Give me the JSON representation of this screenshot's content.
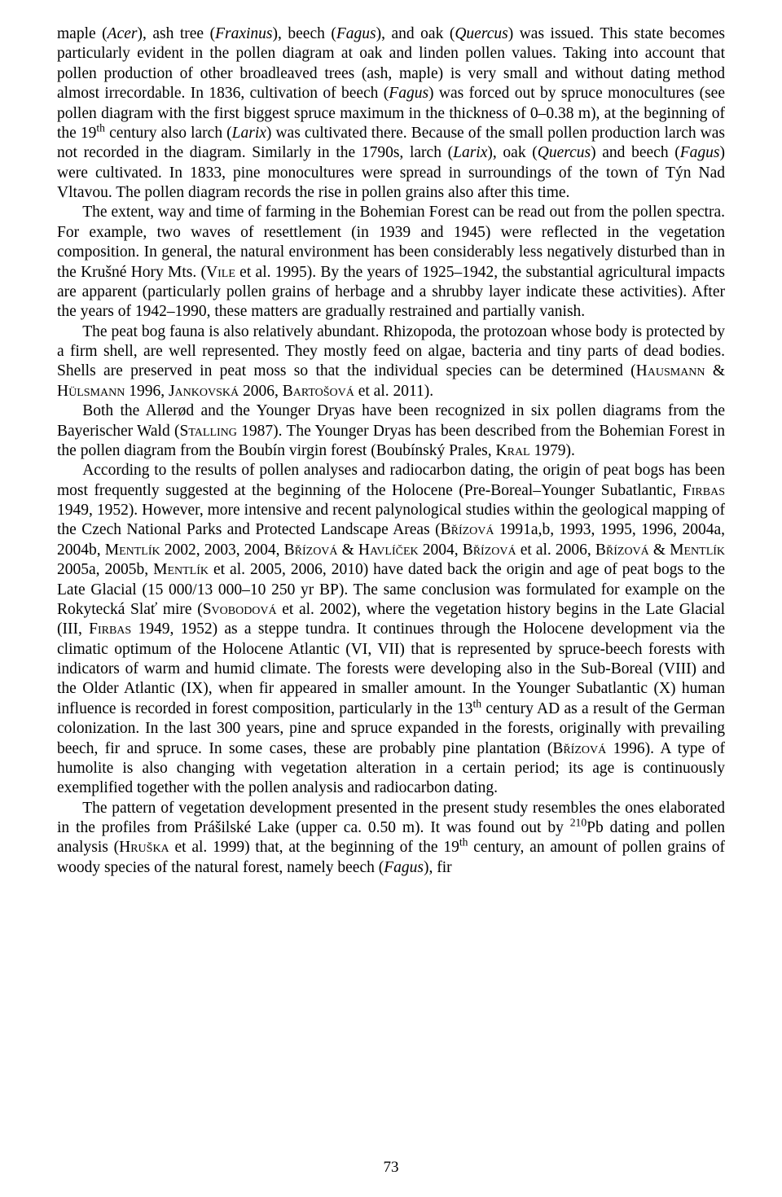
{
  "page": {
    "number": "73",
    "paragraphs": {
      "p1": "maple (<i>Acer</i>), ash tree (<i>Fraxinus</i>), beech (<i>Fagus</i>), and oak (<i>Quercus</i>) was issued. This state becomes particularly evident in the pollen diagram at oak and linden pollen values. Taking into account that pollen production of other broadleaved trees (ash, maple) is very small and without dating method almost irrecordable. In 1836, cultivation of beech (<i>Fagus</i>) was forced out by spruce monocultures (see pollen diagram with the first biggest spruce maximum in the thickness of 0–0.38 m), at the beginning of the 19<sup>th</sup> century also larch (<i>Larix</i>) was cultivated there. Because of the small pollen production larch was not recorded in the diagram. Similarly in the 1790s, larch (<i>Larix</i>), oak (<i>Quercus</i>) and beech (<i>Fagus</i>) were cultivated. In 1833, pine monocultures were spread in surroundings of the town of Týn Nad Vltavou. The pollen diagram records the rise in pollen grains also after this time.",
      "p2": "The extent, way and time of farming in the Bohemian Forest can be read out from the pollen spectra. For example, two waves of resettlement (in 1939 and 1945) were reflected in the vegetation composition. In general, the natural environment has been considerably less negatively disturbed than in the Krušné Hory Mts. (<sc>Vile</sc> et al. 1995). By the years of 1925–1942, the substantial agricultural impacts are apparent (particularly pollen grains of herbage and a shrubby layer indicate these activities). After the years of 1942–1990, these matters are gradually restrained and partially vanish.",
      "p3": "The peat bog fauna is also relatively abundant. Rhizopoda, the protozoan whose body is protected by a firm shell, are well represented. They mostly feed on algae, bacteria and tiny parts of dead bodies. Shells are preserved in peat moss so that the individual species can be determined (<sc>Hausmann</sc> &amp; <sc>Hülsmann</sc> 1996, <sc>Jankovská</sc> 2006, <sc>Bartošová</sc> et al. 2011).",
      "p4": "Both the Allerød and the Younger Dryas have been recognized in six pollen diagrams from the Bayerischer Wald (<sc>Stalling</sc> 1987). The Younger Dryas has been described from the Bohemian Forest in the pollen diagram from the Boubín virgin forest (Boubínský Prales, <sc>Kral</sc> 1979).",
      "p5": "According to the results of pollen analyses and radiocarbon dating, the origin of peat bogs has been most frequently suggested at the beginning of the Holocene (Pre-Boreal–Younger Subatlantic, <sc>Firbas</sc> 1949, 1952). However, more intensive and recent palynological studies within the geological mapping of the Czech National Parks and Protected Landscape Areas (<sc>Břízová</sc> 1991a,b, 1993, 1995, 1996, 2004a, 2004b, <sc>Mentlík</sc> 2002, 2003, 2004, <sc>Břízová</sc> &amp; <sc>Havlíček</sc> 2004, <sc>Břízová</sc> et al. 2006, <sc>Břízová</sc> &amp; <sc>Mentlík</sc> 2005a, 2005b, <sc>Mentlík</sc> et al. 2005, 2006, 2010) have dated back the origin and age of peat bogs to the Late Glacial (15 000/13 000–10 250 yr BP). The same conclusion was formulated for example on the Rokytecká Slať mire (<sc>Svobodová</sc> et al. 2002), where the vegetation history begins in the Late Glacial (III, <sc>Firbas</sc> 1949, 1952) as a steppe tundra. It continues through the Holocene development via the climatic optimum of the Holocene Atlantic (VI, VII) that is represented by spruce-beech forests with indicators of warm and humid climate. The forests were developing also in the Sub-Boreal (VIII) and the Older Atlantic (IX), when fir appeared in smaller amount. In the Younger Subatlantic (X) human influence is recorded in forest composition, particularly in the 13<sup>th</sup> century AD as a result of the German colonization. In the last 300 years, pine and spruce expanded in the forests, originally with prevailing beech, fir and spruce. In some cases, these are probably pine plantation (<sc>Břízová</sc> 1996). A type of humolite is also changing with vegetation alteration in a certain period; its age is continuously exemplified together with the pollen analysis and radiocarbon dating.",
      "p6": "The pattern of vegetation development presented in the present study resembles the ones elaborated in the profiles from Prášilské Lake (upper ca. 0.50 m). It was found out by <sup>210</sup>Pb dating and pollen analysis (<sc>Hruška</sc> et al. 1999) that, at the beginning of the 19<sup>th</sup> century, an amount of pollen grains of woody species of the natural forest, namely beech (<i>Fagus</i>), fir"
    }
  }
}
